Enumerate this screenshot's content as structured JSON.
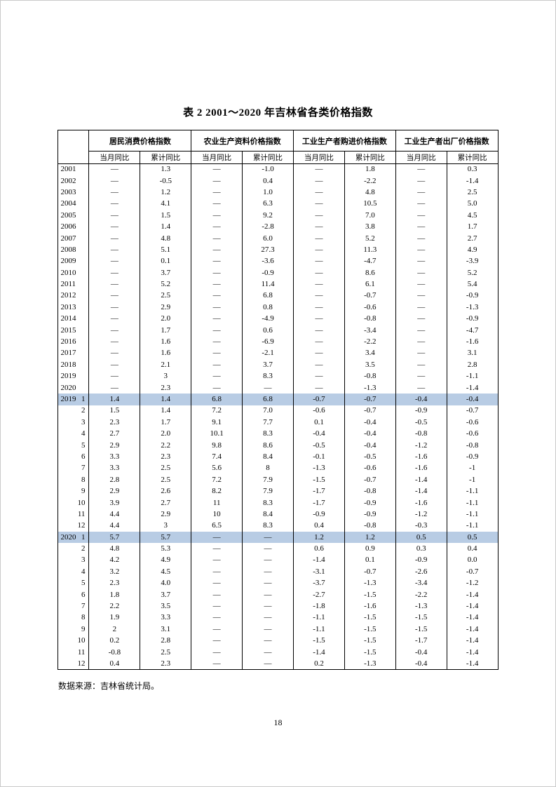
{
  "page": {
    "title": "表 2  2001～2020 年吉林省各类价格指数",
    "source_note": "数据来源：吉林省统计局。",
    "page_number": "18"
  },
  "table": {
    "column_groups": [
      {
        "label": "居民消费价格指数"
      },
      {
        "label": "农业生产资料价格指数"
      },
      {
        "label": "工业生产者购进价格指数"
      },
      {
        "label": "工业生产者出厂价格指数"
      }
    ],
    "sub_headers": [
      "当月同比",
      "累计同比"
    ],
    "highlight_color": "#b8cce4",
    "rows": [
      {
        "year": "2001",
        "month": "",
        "highlight": false,
        "values": [
          "—",
          "1.3",
          "—",
          "-1.0",
          "—",
          "1.8",
          "—",
          "0.3"
        ]
      },
      {
        "year": "2002",
        "month": "",
        "highlight": false,
        "values": [
          "—",
          "-0.5",
          "—",
          "0.4",
          "—",
          "-2.2",
          "—",
          "-1.4"
        ]
      },
      {
        "year": "2003",
        "month": "",
        "highlight": false,
        "values": [
          "—",
          "1.2",
          "—",
          "1.0",
          "—",
          "4.8",
          "—",
          "2.5"
        ]
      },
      {
        "year": "2004",
        "month": "",
        "highlight": false,
        "values": [
          "—",
          "4.1",
          "—",
          "6.3",
          "—",
          "10.5",
          "—",
          "5.0"
        ]
      },
      {
        "year": "2005",
        "month": "",
        "highlight": false,
        "values": [
          "—",
          "1.5",
          "—",
          "9.2",
          "—",
          "7.0",
          "—",
          "4.5"
        ]
      },
      {
        "year": "2006",
        "month": "",
        "highlight": false,
        "values": [
          "—",
          "1.4",
          "—",
          "-2.8",
          "—",
          "3.8",
          "—",
          "1.7"
        ]
      },
      {
        "year": "2007",
        "month": "",
        "highlight": false,
        "values": [
          "—",
          "4.8",
          "—",
          "6.0",
          "—",
          "5.2",
          "—",
          "2.7"
        ]
      },
      {
        "year": "2008",
        "month": "",
        "highlight": false,
        "values": [
          "—",
          "5.1",
          "—",
          "27.3",
          "—",
          "11.3",
          "—",
          "4.9"
        ]
      },
      {
        "year": "2009",
        "month": "",
        "highlight": false,
        "values": [
          "—",
          "0.1",
          "—",
          "-3.6",
          "—",
          "-4.7",
          "—",
          "-3.9"
        ]
      },
      {
        "year": "2010",
        "month": "",
        "highlight": false,
        "values": [
          "—",
          "3.7",
          "—",
          "-0.9",
          "—",
          "8.6",
          "—",
          "5.2"
        ]
      },
      {
        "year": "2011",
        "month": "",
        "highlight": false,
        "values": [
          "—",
          "5.2",
          "—",
          "11.4",
          "—",
          "6.1",
          "—",
          "5.4"
        ]
      },
      {
        "year": "2012",
        "month": "",
        "highlight": false,
        "values": [
          "—",
          "2.5",
          "—",
          "6.8",
          "—",
          "-0.7",
          "—",
          "-0.9"
        ]
      },
      {
        "year": "2013",
        "month": "",
        "highlight": false,
        "values": [
          "—",
          "2.9",
          "—",
          "0.8",
          "—",
          "-0.6",
          "—",
          "-1.3"
        ]
      },
      {
        "year": "2014",
        "month": "",
        "highlight": false,
        "values": [
          "—",
          "2.0",
          "—",
          "-4.9",
          "—",
          "-0.8",
          "—",
          "-0.9"
        ]
      },
      {
        "year": "2015",
        "month": "",
        "highlight": false,
        "values": [
          "—",
          "1.7",
          "—",
          "0.6",
          "—",
          "-3.4",
          "—",
          "-4.7"
        ]
      },
      {
        "year": "2016",
        "month": "",
        "highlight": false,
        "values": [
          "—",
          "1.6",
          "—",
          "-6.9",
          "—",
          "-2.2",
          "—",
          "-1.6"
        ]
      },
      {
        "year": "2017",
        "month": "",
        "highlight": false,
        "values": [
          "—",
          "1.6",
          "—",
          "-2.1",
          "—",
          "3.4",
          "—",
          "3.1"
        ]
      },
      {
        "year": "2018",
        "month": "",
        "highlight": false,
        "values": [
          "—",
          "2.1",
          "—",
          "3.7",
          "—",
          "3.5",
          "—",
          "2.8"
        ]
      },
      {
        "year": "2019",
        "month": "",
        "highlight": false,
        "values": [
          "—",
          "3",
          "—",
          "8.3",
          "—",
          "-0.8",
          "—",
          "-1.1"
        ]
      },
      {
        "year": "2020",
        "month": "",
        "highlight": false,
        "values": [
          "—",
          "2.3",
          "—",
          "—",
          "—",
          "-1.3",
          "—",
          "-1.4"
        ]
      },
      {
        "year": "2019",
        "month": "1",
        "highlight": true,
        "values": [
          "1.4",
          "1.4",
          "6.8",
          "6.8",
          "-0.7",
          "-0.7",
          "-0.4",
          "-0.4"
        ]
      },
      {
        "year": "",
        "month": "2",
        "highlight": false,
        "values": [
          "1.5",
          "1.4",
          "7.2",
          "7.0",
          "-0.6",
          "-0.7",
          "-0.9",
          "-0.7"
        ]
      },
      {
        "year": "",
        "month": "3",
        "highlight": false,
        "values": [
          "2.3",
          "1.7",
          "9.1",
          "7.7",
          "0.1",
          "-0.4",
          "-0.5",
          "-0.6"
        ]
      },
      {
        "year": "",
        "month": "4",
        "highlight": false,
        "values": [
          "2.7",
          "2.0",
          "10.1",
          "8.3",
          "-0.4",
          "-0.4",
          "-0.8",
          "-0.6"
        ]
      },
      {
        "year": "",
        "month": "5",
        "highlight": false,
        "values": [
          "2.9",
          "2.2",
          "9.8",
          "8.6",
          "-0.5",
          "-0.4",
          "-1.2",
          "-0.8"
        ]
      },
      {
        "year": "",
        "month": "6",
        "highlight": false,
        "values": [
          "3.3",
          "2.3",
          "7.4",
          "8.4",
          "-0.1",
          "-0.5",
          "-1.6",
          "-0.9"
        ]
      },
      {
        "year": "",
        "month": "7",
        "highlight": false,
        "values": [
          "3.3",
          "2.5",
          "5.6",
          "8",
          "-1.3",
          "-0.6",
          "-1.6",
          "-1"
        ]
      },
      {
        "year": "",
        "month": "8",
        "highlight": false,
        "values": [
          "2.8",
          "2.5",
          "7.2",
          "7.9",
          "-1.5",
          "-0.7",
          "-1.4",
          "-1"
        ]
      },
      {
        "year": "",
        "month": "9",
        "highlight": false,
        "values": [
          "2.9",
          "2.6",
          "8.2",
          "7.9",
          "-1.7",
          "-0.8",
          "-1.4",
          "-1.1"
        ]
      },
      {
        "year": "",
        "month": "10",
        "highlight": false,
        "values": [
          "3.9",
          "2.7",
          "11",
          "8.3",
          "-1.7",
          "-0.9",
          "-1.6",
          "-1.1"
        ]
      },
      {
        "year": "",
        "month": "11",
        "highlight": false,
        "values": [
          "4.4",
          "2.9",
          "10",
          "8.4",
          "-0.9",
          "-0.9",
          "-1.2",
          "-1.1"
        ]
      },
      {
        "year": "",
        "month": "12",
        "highlight": false,
        "values": [
          "4.4",
          "3",
          "6.5",
          "8.3",
          "0.4",
          "-0.8",
          "-0.3",
          "-1.1"
        ]
      },
      {
        "year": "2020",
        "month": "1",
        "highlight": true,
        "values": [
          "5.7",
          "5.7",
          "—",
          "—",
          "1.2",
          "1.2",
          "0.5",
          "0.5"
        ]
      },
      {
        "year": "",
        "month": "2",
        "highlight": false,
        "values": [
          "4.8",
          "5.3",
          "—",
          "—",
          "0.6",
          "0.9",
          "0.3",
          "0.4"
        ]
      },
      {
        "year": "",
        "month": "3",
        "highlight": false,
        "values": [
          "4.2",
          "4.9",
          "—",
          "—",
          "-1.4",
          "0.1",
          "-0.9",
          "0.0"
        ]
      },
      {
        "year": "",
        "month": "4",
        "highlight": false,
        "values": [
          "3.2",
          "4.5",
          "—",
          "—",
          "-3.1",
          "-0.7",
          "-2.6",
          "-0.7"
        ]
      },
      {
        "year": "",
        "month": "5",
        "highlight": false,
        "values": [
          "2.3",
          "4.0",
          "—",
          "—",
          "-3.7",
          "-1.3",
          "-3.4",
          "-1.2"
        ]
      },
      {
        "year": "",
        "month": "6",
        "highlight": false,
        "values": [
          "1.8",
          "3.7",
          "—",
          "—",
          "-2.7",
          "-1.5",
          "-2.2",
          "-1.4"
        ]
      },
      {
        "year": "",
        "month": "7",
        "highlight": false,
        "values": [
          "2.2",
          "3.5",
          "—",
          "—",
          "-1.8",
          "-1.6",
          "-1.3",
          "-1.4"
        ]
      },
      {
        "year": "",
        "month": "8",
        "highlight": false,
        "values": [
          "1.9",
          "3.3",
          "—",
          "—",
          "-1.1",
          "-1.5",
          "-1.5",
          "-1.4"
        ]
      },
      {
        "year": "",
        "month": "9",
        "highlight": false,
        "values": [
          "2",
          "3.1",
          "—",
          "—",
          "-1.1",
          "-1.5",
          "-1.5",
          "-1.4"
        ]
      },
      {
        "year": "",
        "month": "10",
        "highlight": false,
        "values": [
          "0.2",
          "2.8",
          "—",
          "—",
          "-1.5",
          "-1.5",
          "-1.7",
          "-1.4"
        ]
      },
      {
        "year": "",
        "month": "11",
        "highlight": false,
        "values": [
          "-0.8",
          "2.5",
          "—",
          "—",
          "-1.4",
          "-1.5",
          "-0.4",
          "-1.4"
        ]
      },
      {
        "year": "",
        "month": "12",
        "highlight": false,
        "values": [
          "0.4",
          "2.3",
          "—",
          "—",
          "0.2",
          "-1.3",
          "-0.4",
          "-1.4"
        ]
      }
    ]
  }
}
